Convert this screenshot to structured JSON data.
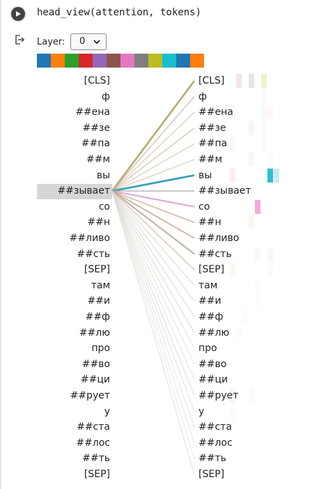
{
  "cell": {
    "code": "head_view(attention, tokens)"
  },
  "layer_control": {
    "label": "Layer:",
    "selected": "0"
  },
  "head_colors": [
    "#1f77b4",
    "#ff7f0e",
    "#2ca02c",
    "#d62728",
    "#9467bd",
    "#8c564b",
    "#e377c2",
    "#7f7f7f",
    "#bcbd22",
    "#17becf",
    "#1f77b4",
    "#ff7f0e"
  ],
  "tokens": [
    "[CLS]",
    "ф",
    "##ена",
    "##зе",
    "##па",
    "##м",
    "вы",
    "##зывает",
    "со",
    "##н",
    "##ливо",
    "##сть",
    "[SEP]",
    "там",
    "##и",
    "##ф",
    "##лю",
    "про",
    "##во",
    "##ци",
    "##рует",
    "у",
    "##ста",
    "##лос",
    "##ть",
    "[SEP]"
  ],
  "selected_token": "##зывает",
  "attention": [
    {
      "color": "#b5a96a",
      "weight": 0.9
    },
    {
      "color": "#b59f8e",
      "weight": 0.3
    },
    {
      "color": "#d1b9a5",
      "weight": 0.35
    },
    {
      "color": "#c8ae8b",
      "weight": 0.35
    },
    {
      "color": "#c7b39b",
      "weight": 0.3
    },
    {
      "color": "#cdb5a0",
      "weight": 0.3
    },
    {
      "color": "#2a9bb4",
      "weight": 0.9
    },
    {
      "color": "#a8a8a8",
      "weight": 0.5
    },
    {
      "color": "#d88cc0",
      "weight": 0.6
    },
    {
      "color": "#bda18f",
      "weight": 0.45
    },
    {
      "color": "#c49c86",
      "weight": 0.55
    },
    {
      "color": "#a89b90",
      "weight": 0.6
    },
    {
      "color": "#d9b8a0",
      "weight": 0.45
    },
    {
      "color": "#d8d0c4",
      "weight": 0.3
    },
    {
      "color": "#d5d0c9",
      "weight": 0.3
    },
    {
      "color": "#d8d2c6",
      "weight": 0.3
    },
    {
      "color": "#ccd4c8",
      "weight": 0.3
    },
    {
      "color": "#d6d6d0",
      "weight": 0.25
    },
    {
      "color": "#dcd8d0",
      "weight": 0.25
    },
    {
      "color": "#d8dbd0",
      "weight": 0.25
    },
    {
      "color": "#ccd8c4",
      "weight": 0.3
    },
    {
      "color": "#d0d8cc",
      "weight": 0.25
    },
    {
      "color": "#d7ddd4",
      "weight": 0.25
    },
    {
      "color": "#d9ddd3",
      "weight": 0.25
    },
    {
      "color": "#dcdfd6",
      "weight": 0.2
    },
    {
      "color": "#cfd8cc",
      "weight": 0.25
    }
  ],
  "heatmap": [
    {
      "row": 0,
      "cells": [
        {
          "col": 1,
          "color": "#e8cfd3",
          "w": 0.55
        },
        {
          "col": 3,
          "color": "#dcdcdc",
          "w": 0.7
        },
        {
          "col": 5,
          "color": "#e8ebb4",
          "w": 0.7
        }
      ]
    },
    {
      "row": 1,
      "cells": [
        {
          "col": 5,
          "color": "#f3f3f3",
          "w": 0.3
        }
      ]
    },
    {
      "row": 2,
      "cells": [
        {
          "col": 0,
          "color": "#f6e5e0",
          "w": 0.3
        },
        {
          "col": 5,
          "color": "#eaf3ea",
          "w": 0.4
        },
        {
          "col": 6,
          "color": "#fbe3e0",
          "w": 0.3
        }
      ]
    },
    {
      "row": 3,
      "cells": [
        {
          "col": 3,
          "color": "#e7f1e6",
          "w": 0.5
        },
        {
          "col": 5,
          "color": "#eef3f8",
          "w": 0.3
        }
      ]
    },
    {
      "row": 4,
      "cells": [
        {
          "col": 0,
          "color": "#f4eee5",
          "w": 0.4
        },
        {
          "col": 5,
          "color": "#f6f0f4",
          "w": 0.3
        }
      ]
    },
    {
      "row": 5,
      "cells": [
        {
          "col": 3,
          "color": "#f1e9f2",
          "w": 0.4
        },
        {
          "col": 6,
          "color": "#f8edf0",
          "w": 0.3
        }
      ]
    },
    {
      "row": 6,
      "cells": [
        {
          "col": 0,
          "color": "#fbdde0",
          "w": 0.5
        },
        {
          "col": 6,
          "color": "#2dbfd1",
          "w": 1.0
        },
        {
          "col": 7,
          "color": "#a7dce6",
          "w": 0.6
        }
      ]
    },
    {
      "row": 7,
      "cells": [
        {
          "col": 0,
          "color": "#f2f2f2",
          "w": 0.3
        }
      ]
    },
    {
      "row": 8,
      "cells": [
        {
          "col": 4,
          "color": "#f3a0d8",
          "w": 0.9
        }
      ]
    },
    {
      "row": 9,
      "cells": [
        {
          "col": 3,
          "color": "#f4e9df",
          "w": 0.4
        }
      ]
    },
    {
      "row": 10,
      "cells": [
        {
          "col": 0,
          "color": "#fbe6dc",
          "w": 0.4
        }
      ]
    },
    {
      "row": 11,
      "cells": [
        {
          "col": 4,
          "color": "#f0f0f0",
          "w": 0.4
        },
        {
          "col": 6,
          "color": "#e8f1f7",
          "w": 0.4
        }
      ]
    },
    {
      "row": 12,
      "cells": [
        {
          "col": 0,
          "color": "#fde7de",
          "w": 0.3
        },
        {
          "col": 6,
          "color": "#eaf2f8",
          "w": 0.3
        }
      ]
    },
    {
      "row": 13,
      "cells": [
        {
          "col": 4,
          "color": "#f3f3f3",
          "w": 0.3
        }
      ]
    },
    {
      "row": 14,
      "cells": [
        {
          "col": 4,
          "color": "#f5f5f5",
          "w": 0.3
        }
      ]
    },
    {
      "row": 15,
      "cells": [
        {
          "col": 2,
          "color": "#f5f5f5",
          "w": 0.3
        }
      ]
    },
    {
      "row": 16,
      "cells": [
        {
          "col": 1,
          "color": "#f6f6f6",
          "w": 0.3
        }
      ]
    },
    {
      "row": 20,
      "cells": [
        {
          "col": 0,
          "color": "#e6f2e6",
          "w": 0.5
        },
        {
          "col": 3,
          "color": "#f3f3f3",
          "w": 0.3
        }
      ]
    },
    {
      "row": 21,
      "cells": [
        {
          "col": 0,
          "color": "#edf5ea",
          "w": 0.3
        }
      ]
    }
  ]
}
